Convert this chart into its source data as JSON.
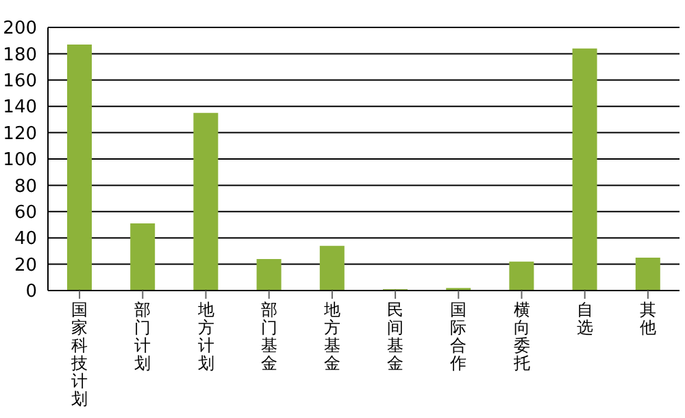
{
  "chart_data": {
    "type": "bar",
    "categories": [
      "国家科技计划",
      "部门计划",
      "地方计划",
      "部门基金",
      "地方基金",
      "民间基金",
      "国际合作",
      "横向委托",
      "自选",
      "其他"
    ],
    "values": [
      187,
      51,
      135,
      24,
      34,
      1,
      2,
      22,
      184,
      25
    ],
    "color": "#8db33a",
    "ylim": [
      0,
      200
    ],
    "yticks": [
      0,
      20,
      40,
      60,
      80,
      100,
      120,
      140,
      160,
      180,
      200
    ],
    "grid": "y"
  }
}
